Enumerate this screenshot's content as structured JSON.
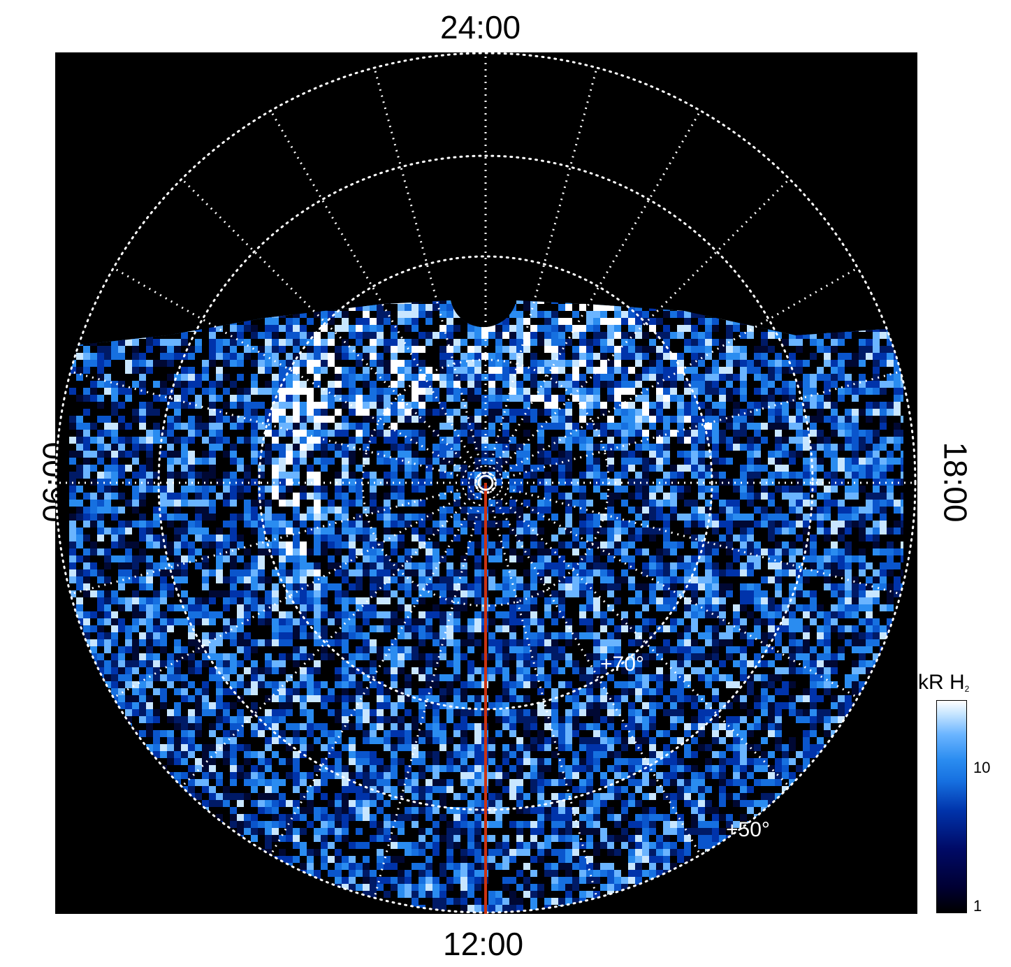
{
  "time_labels": {
    "top": "24:00",
    "bottom": "12:00",
    "left": "06:00",
    "right": "18:00"
  },
  "latitude_labels": [
    "+70°",
    "+50°"
  ],
  "colorbar": {
    "title": "kR H",
    "title_subscript": "2",
    "ticks": [
      "10",
      "1"
    ],
    "scale": "log",
    "colors": [
      "#000000",
      "#000a66",
      "#0033aa",
      "#1670e0",
      "#6ab4ff",
      "#ffffff"
    ]
  },
  "colors": {
    "background": "#000000",
    "grid": "#ffffff",
    "meridian_line": "#cc3311"
  }
}
